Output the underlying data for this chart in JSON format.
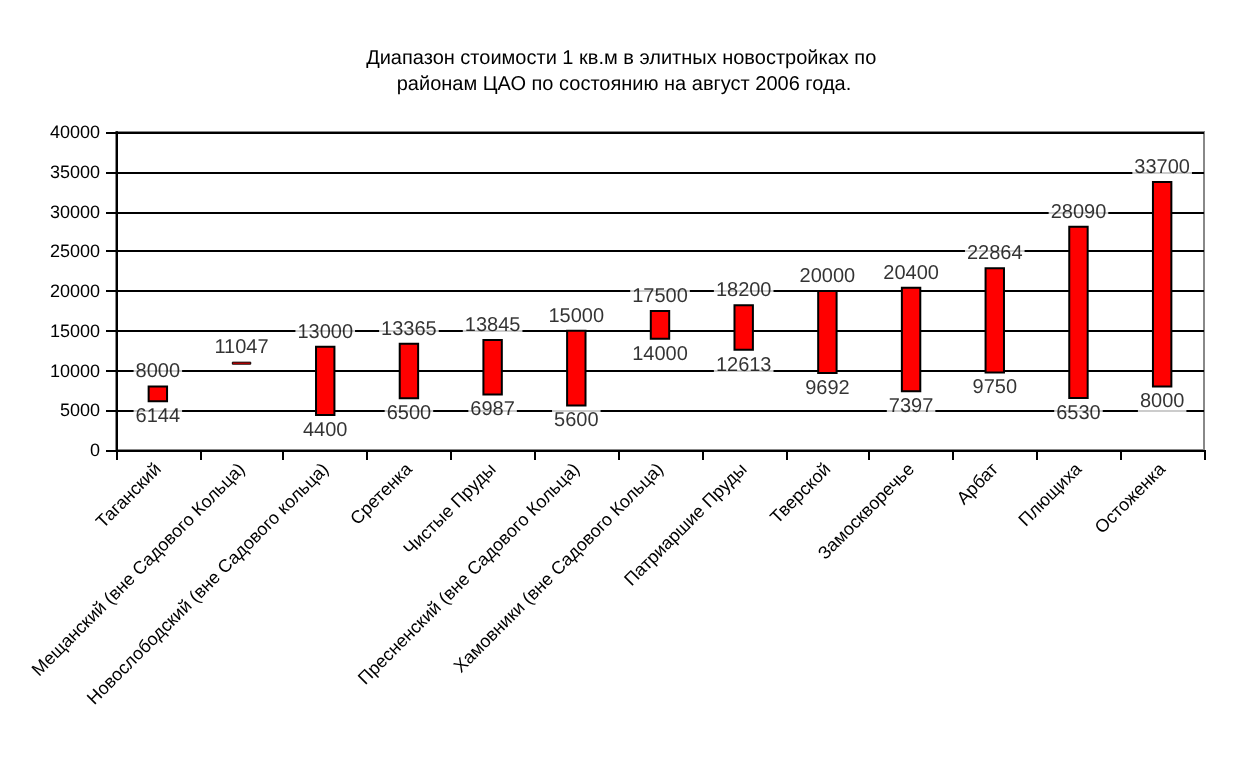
{
  "chart_data": {
    "type": "bar",
    "title": "Диапазон стоимости 1 кв.м в элитных новостройках по районам ЦАО по состоянию на август 2006 года.",
    "categories": [
      "Таганский",
      "Мещанский (вне Садового Кольца)",
      "Новослободский (вне Садового кольца)",
      "Сретенка",
      "Чистые Пруды",
      "Пресненский (вне Садового Кольца)",
      "Хамовники (вне Садового Кольца)",
      "Патриаршие Пруды",
      "Тверской",
      "Замоскворечье",
      "Арбат",
      "Плющиха",
      "Остоженка"
    ],
    "base": [
      6144,
      11047,
      4400,
      6500,
      6987,
      5600,
      14000,
      12613,
      9692,
      7397,
      9750,
      6530,
      8000
    ],
    "values": [
      1856,
      0,
      8600,
      6865,
      6858,
      9400,
      3500,
      5587,
      10308,
      13003,
      13114,
      21560,
      25700
    ],
    "color": "#ff0000",
    "ylim": [
      0,
      40000
    ],
    "yticks": [
      0,
      5000,
      10000,
      15000,
      20000,
      25000,
      30000,
      35000,
      40000
    ],
    "grid": "y",
    "annotations": [
      {
        "text": "8000",
        "x": "Таганский",
        "y": 8000
      },
      {
        "text": "6144",
        "x": "Таганский",
        "y": 6144
      },
      {
        "text": "11047",
        "x": "Мещанский (вне Садового Кольца)",
        "y": 11047
      },
      {
        "text": "13000",
        "x": "Новослободский (вне Садового кольца)",
        "y": 13000
      },
      {
        "text": "4400",
        "x": "Новослободский (вне Садового кольца)",
        "y": 4400
      },
      {
        "text": "13365",
        "x": "Сретенка",
        "y": 13365
      },
      {
        "text": "6500",
        "x": "Сретенка",
        "y": 6500
      },
      {
        "text": "13845",
        "x": "Чистые Пруды",
        "y": 13845
      },
      {
        "text": "6987",
        "x": "Чистые Пруды",
        "y": 6987
      },
      {
        "text": "15000",
        "x": "Пресненский (вне Садового Кольца)",
        "y": 15000
      },
      {
        "text": "5600",
        "x": "Пресненский (вне Садового Кольца)",
        "y": 5600
      },
      {
        "text": "17500",
        "x": "Хамовники (вне Садового Кольца)",
        "y": 17500
      },
      {
        "text": "14000",
        "x": "Хамовники (вне Садового Кольца)",
        "y": 14000
      },
      {
        "text": "18200",
        "x": "Патриаршие Пруды",
        "y": 18200
      },
      {
        "text": "12613",
        "x": "Патриаршие Пруды",
        "y": 12613
      },
      {
        "text": "20000",
        "x": "Тверской",
        "y": 20000
      },
      {
        "text": "9692",
        "x": "Тверской",
        "y": 9692
      },
      {
        "text": "20400",
        "x": "Замоскворечье",
        "y": 20400
      },
      {
        "text": "7397",
        "x": "Замоскворечье",
        "y": 7397
      },
      {
        "text": "22864",
        "x": "Арбат",
        "y": 22864
      },
      {
        "text": "9750",
        "x": "Арбат",
        "y": 9750
      },
      {
        "text": "28090",
        "x": "Плющиха",
        "y": 28090
      },
      {
        "text": "6530",
        "x": "Плющиха",
        "y": 6530
      },
      {
        "text": "33700",
        "x": "Остоженка",
        "y": 33700
      },
      {
        "text": "8000",
        "x": "Остоженка",
        "y": 8000
      }
    ]
  }
}
